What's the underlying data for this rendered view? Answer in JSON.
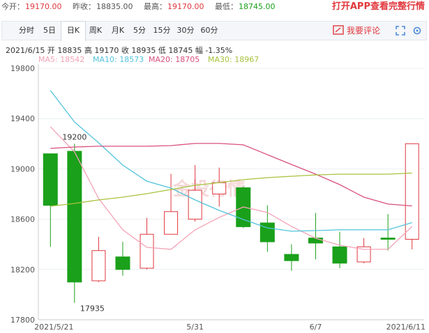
{
  "quote": [
    {
      "label": "今开：",
      "value": "19170.00",
      "trend": "up"
    },
    {
      "label": "昨收：",
      "value": "18835.00",
      "trend": "flat"
    },
    {
      "label": "最高：",
      "value": "19170.00",
      "trend": "up"
    },
    {
      "label": "最低：",
      "value": "18745.00",
      "trend": "down"
    }
  ],
  "app_link": "打开APP查看完整行情",
  "tabs": [
    "分时",
    "5日",
    "日K",
    "周K",
    "月K",
    "5分",
    "15分",
    "30分",
    "60分"
  ],
  "active_tab": 2,
  "comment": "我要评论",
  "info": "2021/6/15 开 18835 高 19170 收 18935 低 18745 幅 -1.35%",
  "chart_data": {
    "type": "candlestick",
    "watermark": "金投行情",
    "categories": [
      "2021/5/21",
      null,
      null,
      null,
      null,
      null,
      "5/31",
      null,
      null,
      null,
      null,
      "6/7",
      null,
      null,
      null,
      "2021/6/11"
    ],
    "open": [
      19120,
      19140,
      18110,
      18300,
      18210,
      18480,
      18600,
      18800,
      18850,
      18570,
      18320,
      18450,
      18380,
      18260,
      18450,
      18440
    ],
    "high": [
      19120,
      19200,
      18460,
      18420,
      18610,
      18960,
      19030,
      19010,
      18860,
      18710,
      18400,
      18650,
      18500,
      18450,
      18640,
      19200
    ],
    "low": [
      18380,
      17935,
      18100,
      18150,
      18200,
      18480,
      18580,
      18700,
      18530,
      18340,
      18190,
      18280,
      18210,
      18250,
      18350,
      18360
    ],
    "close": [
      18710,
      18100,
      18350,
      18200,
      18480,
      18660,
      18830,
      18890,
      18540,
      18420,
      18270,
      18410,
      18250,
      18380,
      18440,
      19200
    ],
    "up_color": "#e0383e",
    "down_color": "#1aa01a",
    "ma_lines": [
      {
        "name": "MA5: 18542",
        "color": "#f4a3b6",
        "values": [
          19335,
          19135,
          18764,
          18515,
          18376,
          18360,
          18515,
          18614,
          18697,
          18653,
          18542,
          18448,
          18393,
          18360,
          18360,
          18542
        ]
      },
      {
        "name": "MA10: 18573",
        "color": "#52c3dc",
        "values": [
          19623,
          19373,
          19207,
          19030,
          18902,
          18847,
          18753,
          18670,
          18598,
          18531,
          18504,
          18509,
          18515,
          18515,
          18515,
          18573
        ]
      },
      {
        "name": "MA20: 18705",
        "color": "#d9507e",
        "values": [
          19163,
          19174,
          19180,
          19180,
          19180,
          19185,
          19202,
          19202,
          19191,
          19113,
          19035,
          18958,
          18875,
          18775,
          18720,
          18705
        ]
      },
      {
        "name": "MA30: 18967",
        "color": "#a8c23e",
        "values": [
          18703,
          18725,
          18753,
          18775,
          18803,
          18836,
          18869,
          18891,
          18914,
          18930,
          18941,
          18952,
          18958,
          18958,
          18958,
          18967
        ]
      }
    ],
    "ylim": [
      17800,
      19800
    ],
    "yticks": [
      17800,
      18200,
      18600,
      19000,
      19400,
      19800
    ],
    "grid": true
  }
}
